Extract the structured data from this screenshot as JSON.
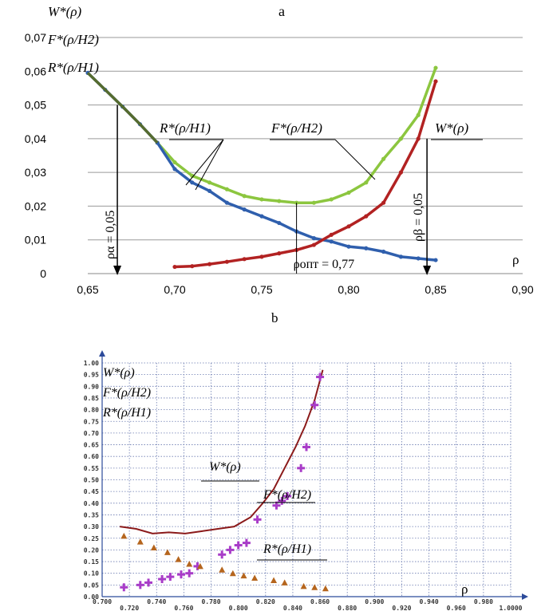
{
  "chart_data": [
    {
      "id": "a",
      "type": "line",
      "panel_label": "a",
      "xlim": [
        0.65,
        0.9
      ],
      "ylim": [
        0,
        0.07
      ],
      "x_ticks": [
        "0,65",
        "0,70",
        "0,75",
        "0,80",
        "0,85",
        "0,90"
      ],
      "y_ticks": [
        "0",
        "0,01",
        "0,02",
        "0,03",
        "0,04",
        "0,05",
        "0,06",
        "0,07"
      ],
      "x_tick_values": [
        0.65,
        0.7,
        0.75,
        0.8,
        0.85,
        0.9
      ],
      "y_tick_values": [
        0,
        0.01,
        0.02,
        0.03,
        0.04,
        0.05,
        0.06,
        0.07
      ],
      "xlabel": "ρ",
      "ylabel_lines": [
        "W*(ρ)",
        "F*(ρ/H2)",
        "R*(ρ/H1)"
      ],
      "grid": "horizontal",
      "colors": {
        "R": "#2f5fad",
        "F": "#8cc63f",
        "W": "#b22222",
        "overlap": "#556b2f"
      },
      "series": [
        {
          "key": "R",
          "label": "R*(ρ/H1)",
          "x": [
            0.65,
            0.66,
            0.67,
            0.68,
            0.69,
            0.7,
            0.71,
            0.72,
            0.73,
            0.74,
            0.75,
            0.76,
            0.77,
            0.78,
            0.79,
            0.8,
            0.81,
            0.82,
            0.83,
            0.84,
            0.85
          ],
          "y": [
            0.0595,
            0.0545,
            0.0495,
            0.0443,
            0.0388,
            0.031,
            0.027,
            0.0245,
            0.021,
            0.019,
            0.017,
            0.015,
            0.0125,
            0.0105,
            0.0095,
            0.008,
            0.0075,
            0.0065,
            0.005,
            0.0045,
            0.004
          ]
        },
        {
          "key": "F",
          "label": "F*(ρ/H2)",
          "x": [
            0.69,
            0.7,
            0.71,
            0.72,
            0.73,
            0.74,
            0.75,
            0.76,
            0.77,
            0.78,
            0.79,
            0.8,
            0.81,
            0.82,
            0.83,
            0.84,
            0.85
          ],
          "y": [
            0.0388,
            0.033,
            0.029,
            0.027,
            0.025,
            0.023,
            0.022,
            0.0215,
            0.021,
            0.021,
            0.022,
            0.024,
            0.027,
            0.034,
            0.04,
            0.047,
            0.061
          ]
        },
        {
          "key": "W",
          "label": "W*(ρ)",
          "x": [
            0.7,
            0.71,
            0.72,
            0.73,
            0.74,
            0.75,
            0.76,
            0.77,
            0.78,
            0.79,
            0.8,
            0.81,
            0.82,
            0.83,
            0.84,
            0.85
          ],
          "y": [
            0.002,
            0.0022,
            0.0028,
            0.0035,
            0.0043,
            0.005,
            0.006,
            0.007,
            0.0085,
            0.0115,
            0.014,
            0.017,
            0.021,
            0.03,
            0.04,
            0.057
          ]
        }
      ],
      "annotations": {
        "rho_alpha": {
          "label": "ρα = 0,05",
          "x": 0.667
        },
        "rho_beta": {
          "label": "ρβ = 0,05",
          "x": 0.845
        },
        "rho_opt": {
          "label": "ρопт = 0,77",
          "x": 0.77
        },
        "R_label": "R*(ρ/H1)",
        "F_label": "F*(ρ/H2)",
        "W_label": "W*(ρ)"
      }
    },
    {
      "id": "b",
      "type": "scatter",
      "panel_label": "b",
      "xlim": [
        0.7,
        1.0
      ],
      "ylim": [
        0,
        1.0
      ],
      "x_ticks": [
        "0.700",
        "0.720",
        "0.740",
        "0.760",
        "0.780",
        "0.800",
        "0.820",
        "0.840",
        "0.860",
        "0.880",
        "0.900",
        "0.920",
        "0.940",
        "0.960",
        "0.980",
        "1.0000"
      ],
      "y_ticks": [
        "0.00",
        "0.05",
        "0.10",
        "0.15",
        "0.20",
        "0.25",
        "0.30",
        "0.35",
        "0.40",
        "0.45",
        "0.50",
        "0.55",
        "0.60",
        "0.65",
        "0.70",
        "0.75",
        "0.80",
        "0.85",
        "0.90",
        "0.95",
        "1.00"
      ],
      "x_tick_values": [
        0.7,
        0.72,
        0.74,
        0.76,
        0.78,
        0.8,
        0.82,
        0.84,
        0.86,
        0.88,
        0.9,
        0.92,
        0.94,
        0.96,
        0.98,
        1.0
      ],
      "y_tick_values": [
        0,
        0.05,
        0.1,
        0.15,
        0.2,
        0.25,
        0.3,
        0.35,
        0.4,
        0.45,
        0.5,
        0.55,
        0.6,
        0.65,
        0.7,
        0.75,
        0.8,
        0.85,
        0.9,
        0.95,
        1.0
      ],
      "xlabel": "ρ",
      "ylabel_lines": [
        "W*(ρ)",
        "F*(ρ/H2)",
        "R*(ρ/H1)"
      ],
      "grid": "dotted",
      "colors": {
        "W": "#8b1a1a",
        "F": "#a83cc8",
        "R": "#b5651d"
      },
      "series": [
        {
          "key": "W",
          "label": "W*(ρ)",
          "marker": "line",
          "x": [
            0.713,
            0.725,
            0.737,
            0.749,
            0.761,
            0.773,
            0.785,
            0.797,
            0.809,
            0.818,
            0.826,
            0.834,
            0.842,
            0.849,
            0.856,
            0.862
          ],
          "y": [
            0.3,
            0.29,
            0.27,
            0.275,
            0.27,
            0.28,
            0.29,
            0.3,
            0.34,
            0.4,
            0.46,
            0.55,
            0.64,
            0.73,
            0.84,
            0.97
          ]
        },
        {
          "key": "F",
          "label": "F*(ρ/H2)",
          "marker": "cross",
          "x": [
            0.716,
            0.728,
            0.734,
            0.744,
            0.75,
            0.758,
            0.764,
            0.77,
            0.788,
            0.794,
            0.8,
            0.806,
            0.814,
            0.828,
            0.832,
            0.836,
            0.846,
            0.85,
            0.856,
            0.86
          ],
          "y": [
            0.04,
            0.05,
            0.06,
            0.075,
            0.085,
            0.095,
            0.1,
            0.13,
            0.18,
            0.2,
            0.22,
            0.23,
            0.33,
            0.39,
            0.41,
            0.43,
            0.55,
            0.64,
            0.82,
            0.94
          ]
        },
        {
          "key": "R",
          "label": "R*(ρ/H1)",
          "marker": "triangle",
          "x": [
            0.716,
            0.728,
            0.738,
            0.748,
            0.756,
            0.764,
            0.772,
            0.788,
            0.796,
            0.804,
            0.812,
            0.826,
            0.834,
            0.848,
            0.856,
            0.864
          ],
          "y": [
            0.26,
            0.235,
            0.21,
            0.19,
            0.16,
            0.14,
            0.13,
            0.115,
            0.1,
            0.09,
            0.08,
            0.07,
            0.06,
            0.045,
            0.04,
            0.035
          ]
        }
      ],
      "annotations": {
        "W_label": "W*(ρ)",
        "F_label": "F*(ρ/H2)",
        "R_label": "R*(ρ/H1)"
      }
    }
  ]
}
